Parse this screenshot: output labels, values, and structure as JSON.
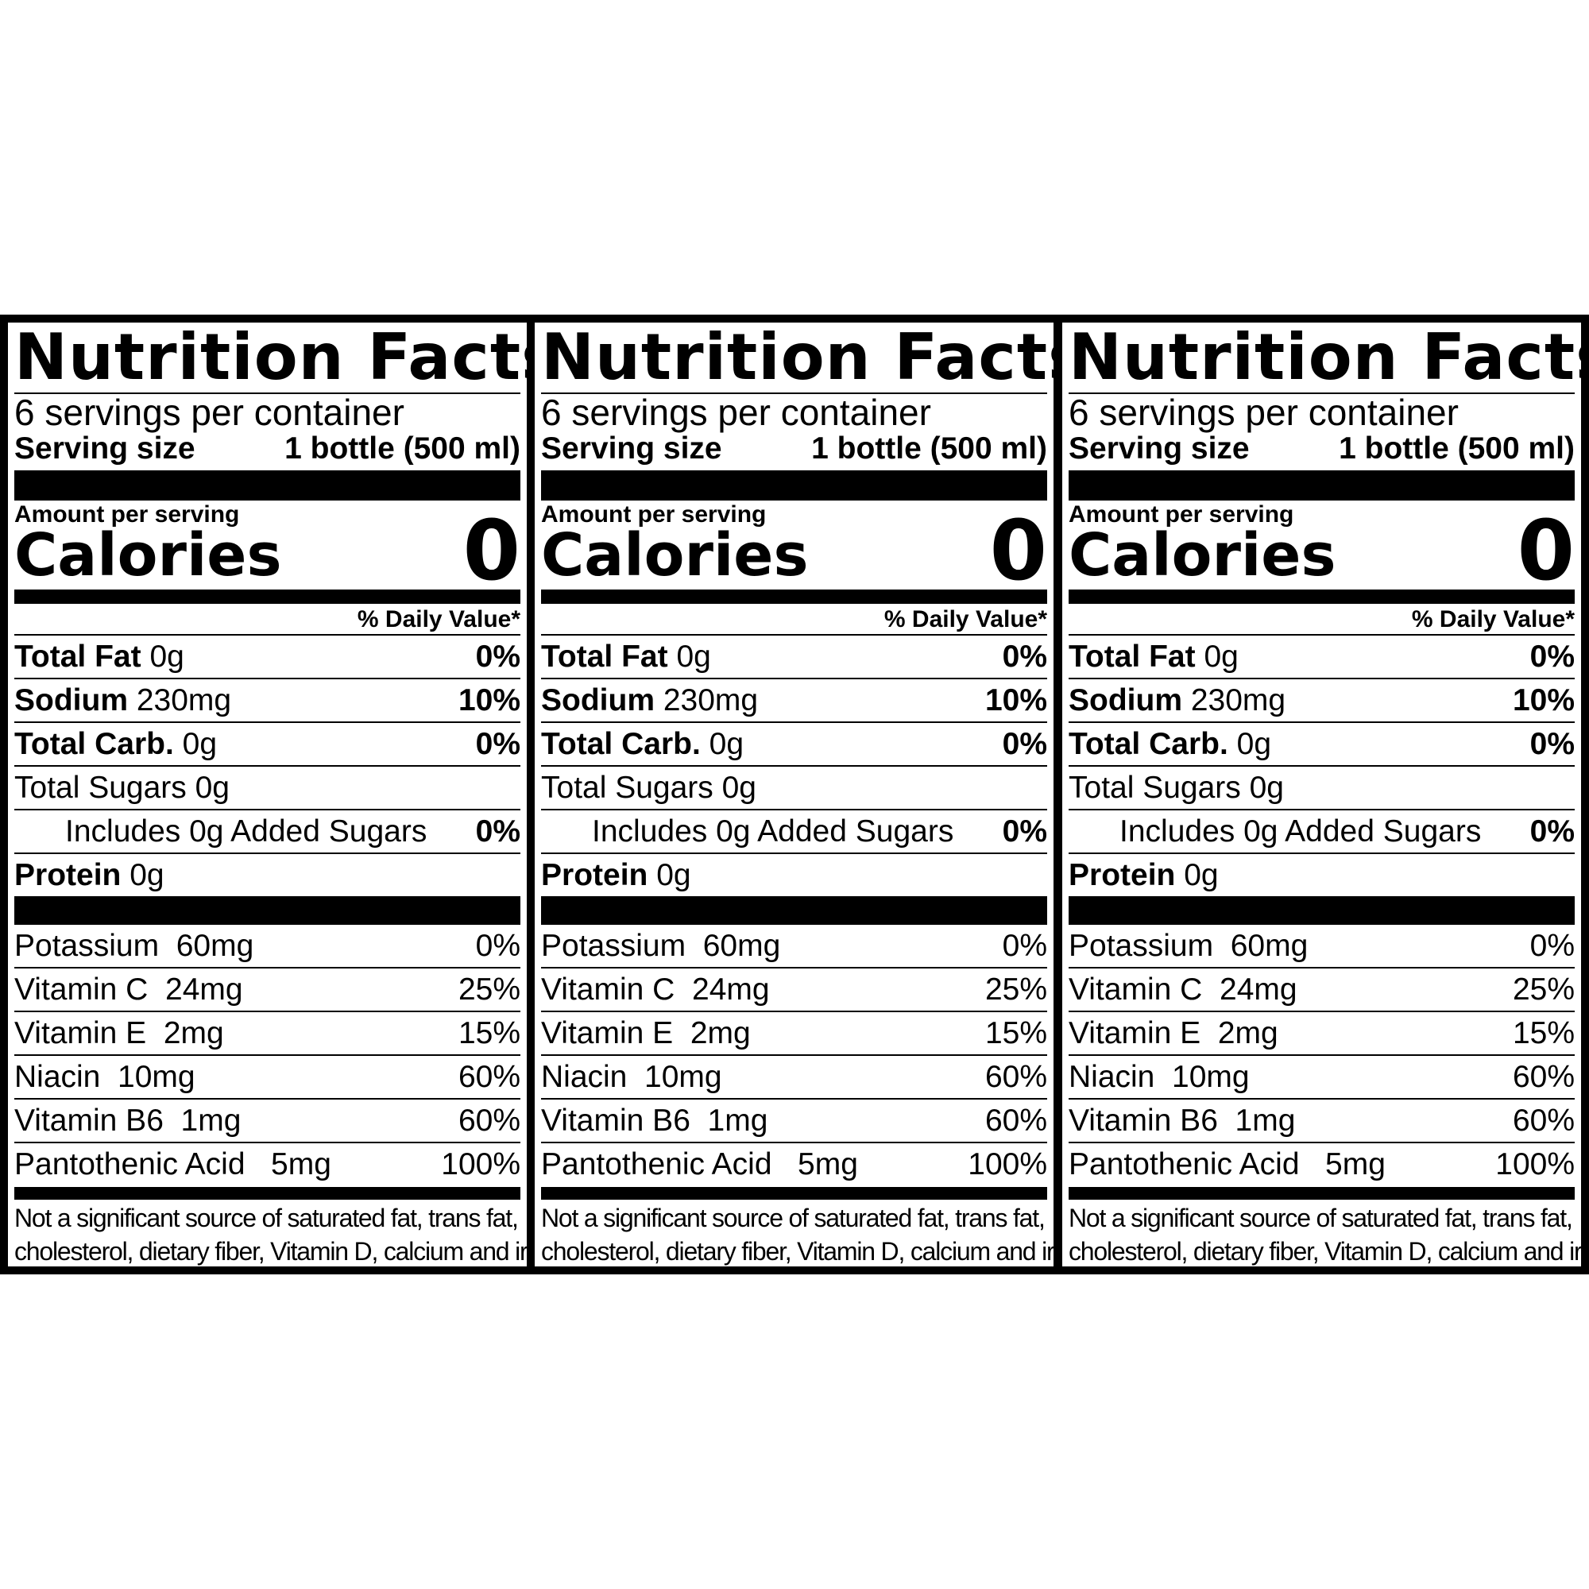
{
  "panels": [
    {
      "title": "Nutrition Facts",
      "servings_per_container": "6 servings per container",
      "serving_size_label": "Serving size",
      "serving_size_value": "1 bottle (500 ml)",
      "amount_per_serving": "Amount per serving",
      "calories_label": "Calories",
      "calories_value": "0",
      "daily_value_header": "% Daily Value*",
      "nutrients": [
        {
          "name": "Total Fat",
          "amount": "0g",
          "dv": "0%"
        },
        {
          "name": "Sodium",
          "amount": "230mg",
          "dv": "10%"
        },
        {
          "name": "Total Carb.",
          "amount": "0g",
          "dv": "0%"
        },
        {
          "name": "Total Sugars 0g",
          "amount": "",
          "dv": ""
        },
        {
          "name": "Includes 0g Added Sugars",
          "amount": "",
          "dv": "0%"
        },
        {
          "name": "Protein",
          "amount": "0g",
          "dv": ""
        }
      ],
      "vitamins": [
        {
          "name": "Potassium  60mg",
          "dv": "0%"
        },
        {
          "name": "Vitamin C  24mg",
          "dv": "25%"
        },
        {
          "name": "Vitamin E  2mg",
          "dv": "15%"
        },
        {
          "name": "Niacin  10mg",
          "dv": "60%"
        },
        {
          "name": "Vitamin B6  1mg",
          "dv": "60%"
        },
        {
          "name": "Pantothenic Acid   5mg",
          "dv": "100%"
        }
      ],
      "footnote_line1": "Not a significant source of saturated fat, trans fat,",
      "footnote_line2": "cholesterol, dietary fiber, Vitamin D, calcium and iron."
    },
    {
      "title": "Nutrition Facts",
      "servings_per_container": "6 servings per container",
      "serving_size_label": "Serving size",
      "serving_size_value": "1 bottle (500 ml)",
      "amount_per_serving": "Amount per serving",
      "calories_label": "Calories",
      "calories_value": "0",
      "daily_value_header": "% Daily Value*",
      "nutrients": [
        {
          "name": "Total Fat",
          "amount": "0g",
          "dv": "0%"
        },
        {
          "name": "Sodium",
          "amount": "230mg",
          "dv": "10%"
        },
        {
          "name": "Total Carb.",
          "amount": "0g",
          "dv": "0%"
        },
        {
          "name": "Total Sugars 0g",
          "amount": "",
          "dv": ""
        },
        {
          "name": "Includes 0g Added Sugars",
          "amount": "",
          "dv": "0%"
        },
        {
          "name": "Protein",
          "amount": "0g",
          "dv": ""
        }
      ],
      "vitamins": [
        {
          "name": "Potassium  60mg",
          "dv": "0%"
        },
        {
          "name": "Vitamin C  24mg",
          "dv": "25%"
        },
        {
          "name": "Vitamin E  2mg",
          "dv": "15%"
        },
        {
          "name": "Niacin  10mg",
          "dv": "60%"
        },
        {
          "name": "Vitamin B6  1mg",
          "dv": "60%"
        },
        {
          "name": "Pantothenic Acid   5mg",
          "dv": "100%"
        }
      ],
      "footnote_line1": "Not a significant source of saturated fat, trans fat,",
      "footnote_line2": "cholesterol, dietary fiber, Vitamin D, calcium and iron."
    },
    {
      "title": "Nutrition Facts",
      "servings_per_container": "6 servings per container",
      "serving_size_label": "Serving size",
      "serving_size_value": "1 bottle (500 ml)",
      "amount_per_serving": "Amount per serving",
      "calories_label": "Calories",
      "calories_value": "0",
      "daily_value_header": "% Daily Value*",
      "nutrients": [
        {
          "name": "Total Fat",
          "amount": "0g",
          "dv": "0%"
        },
        {
          "name": "Sodium",
          "amount": "230mg",
          "dv": "10%"
        },
        {
          "name": "Total Carb.",
          "amount": "0g",
          "dv": "0%"
        },
        {
          "name": "Total Sugars 0g",
          "amount": "",
          "dv": ""
        },
        {
          "name": "Includes 0g Added Sugars",
          "amount": "",
          "dv": "0%"
        },
        {
          "name": "Protein",
          "amount": "0g",
          "dv": ""
        }
      ],
      "vitamins": [
        {
          "name": "Potassium  60mg",
          "dv": "0%"
        },
        {
          "name": "Vitamin C  24mg",
          "dv": "25%"
        },
        {
          "name": "Vitamin E  2mg",
          "dv": "15%"
        },
        {
          "name": "Niacin  10mg",
          "dv": "60%"
        },
        {
          "name": "Vitamin B6  1mg",
          "dv": "60%"
        },
        {
          "name": "Pantothenic Acid   5mg",
          "dv": "100%"
        }
      ],
      "footnote_line1": "Not a significant source of saturated fat, trans fat,",
      "footnote_line2": "cholesterol, dietary fiber, Vitamin D, calcium and iron."
    }
  ]
}
